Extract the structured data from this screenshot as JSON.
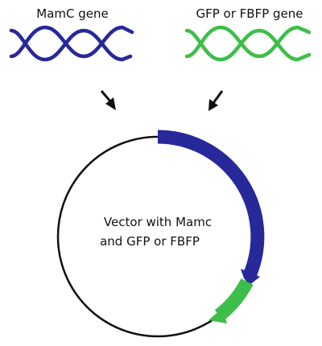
{
  "genes": {
    "left": {
      "label": "MamC gene",
      "color": "#27289a"
    },
    "right": {
      "label": "GFP or FBFP gene",
      "color": "#3dbe4a"
    }
  },
  "vector": {
    "line1": "Vector with Mamc",
    "line2": "and GFP or FBFP",
    "circle_color": "#111111",
    "mamc_segment_color": "#27289a",
    "gfp_segment_color": "#3dbe4a"
  },
  "arrows": {
    "color": "#111111"
  }
}
